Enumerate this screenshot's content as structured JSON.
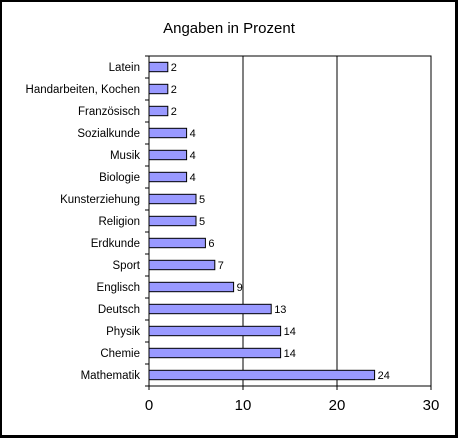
{
  "chart_data": {
    "type": "bar",
    "orientation": "horizontal",
    "title": "Angaben in Prozent",
    "xlabel": "",
    "ylabel": "",
    "categories": [
      "Latein",
      "Handarbeiten, Kochen",
      "Französisch",
      "Sozialkunde",
      "Musik",
      "Biologie",
      "Kunsterziehung",
      "Religion",
      "Erdkunde",
      "Sport",
      "Englisch",
      "Deutsch",
      "Physik",
      "Chemie",
      "Mathematik"
    ],
    "values": [
      2,
      2,
      2,
      4,
      4,
      4,
      5,
      5,
      6,
      7,
      9,
      13,
      14,
      14,
      24
    ],
    "xlim": [
      0,
      30
    ],
    "x_ticks": [
      "0",
      "10",
      "20",
      "30"
    ],
    "grid": "vertical",
    "legend": "none",
    "colors": {
      "bar_fill": "#9999ff",
      "bar_stroke": "#000000",
      "frame": "#000000",
      "background": "#ffffff"
    }
  }
}
